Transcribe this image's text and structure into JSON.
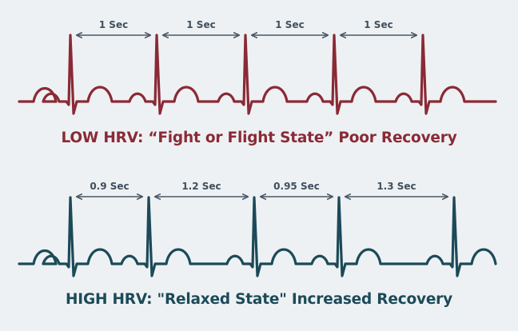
{
  "colors": {
    "background": "#eef1f3",
    "low_hrv_trace": "#8a2a36",
    "high_hrv_trace": "#1c4a59",
    "arrow": "#4a5866"
  },
  "low_hrv": {
    "caption": "LOW HRV: “Fight or Flight State” Poor Recovery",
    "intervals": [
      {
        "label": "1 Sec"
      },
      {
        "label": "1 Sec"
      },
      {
        "label": "1 Sec"
      },
      {
        "label": "1 Sec"
      }
    ]
  },
  "high_hrv": {
    "caption": "HIGH HRV: \"Relaxed State\" Increased Recovery",
    "intervals": [
      {
        "label": "0.9 Sec"
      },
      {
        "label": "1.2 Sec"
      },
      {
        "label": "0.95 Sec"
      },
      {
        "label": "1.3 Sec"
      }
    ]
  }
}
